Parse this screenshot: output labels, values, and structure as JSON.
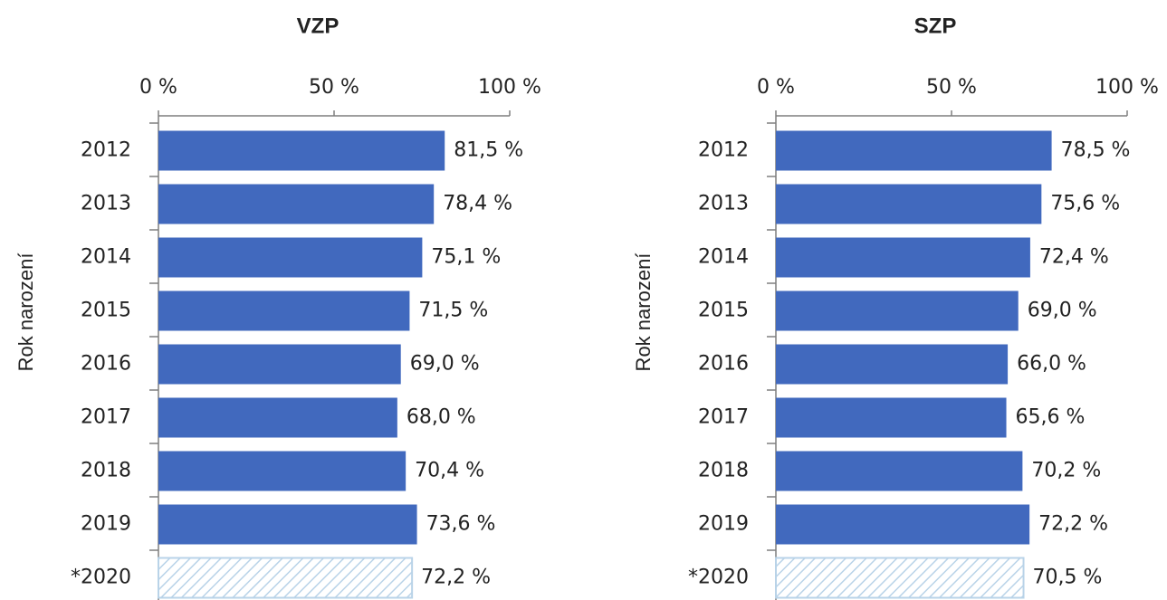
{
  "chart_data": [
    {
      "type": "bar",
      "title": "VZP",
      "y_label": "Rok narození",
      "categories": [
        "2012",
        "2013",
        "2014",
        "2015",
        "2016",
        "2017",
        "2018",
        "2019",
        "*2020"
      ],
      "values": [
        81.5,
        78.4,
        75.1,
        71.5,
        69.0,
        68.0,
        70.4,
        73.6,
        72.2
      ],
      "value_labels": [
        "81,5 %",
        "78,4 %",
        "75,1 %",
        "71,5 %",
        "69,0 %",
        "68,0 %",
        "70,4 %",
        "73,6 %",
        "72,2 %"
      ],
      "bar_styles": [
        "solid",
        "solid",
        "solid",
        "solid",
        "solid",
        "solid",
        "solid",
        "solid",
        "hatched"
      ],
      "color": "#4169be",
      "xlim": [
        0,
        100
      ],
      "xticks": [
        {
          "value": 0,
          "label": "0 %"
        },
        {
          "value": 50,
          "label": "50 %"
        },
        {
          "value": 100,
          "label": "100 %"
        }
      ]
    },
    {
      "type": "bar",
      "title": "SZP",
      "y_label": "Rok narození",
      "categories": [
        "2012",
        "2013",
        "2014",
        "2015",
        "2016",
        "2017",
        "2018",
        "2019",
        "*2020"
      ],
      "values": [
        78.5,
        75.6,
        72.4,
        69.0,
        66.0,
        65.6,
        70.2,
        72.2,
        70.5
      ],
      "value_labels": [
        "78,5 %",
        "75,6 %",
        "72,4 %",
        "69,0 %",
        "66,0 %",
        "65,6 %",
        "70,2 %",
        "72,2 %",
        "70,5 %"
      ],
      "bar_styles": [
        "solid",
        "solid",
        "solid",
        "solid",
        "solid",
        "solid",
        "solid",
        "solid",
        "hatched"
      ],
      "color": "#4169be",
      "xlim": [
        0,
        100
      ],
      "xticks": [
        {
          "value": 0,
          "label": "0 %"
        },
        {
          "value": 50,
          "label": "50 %"
        },
        {
          "value": 100,
          "label": "100 %"
        }
      ]
    }
  ]
}
